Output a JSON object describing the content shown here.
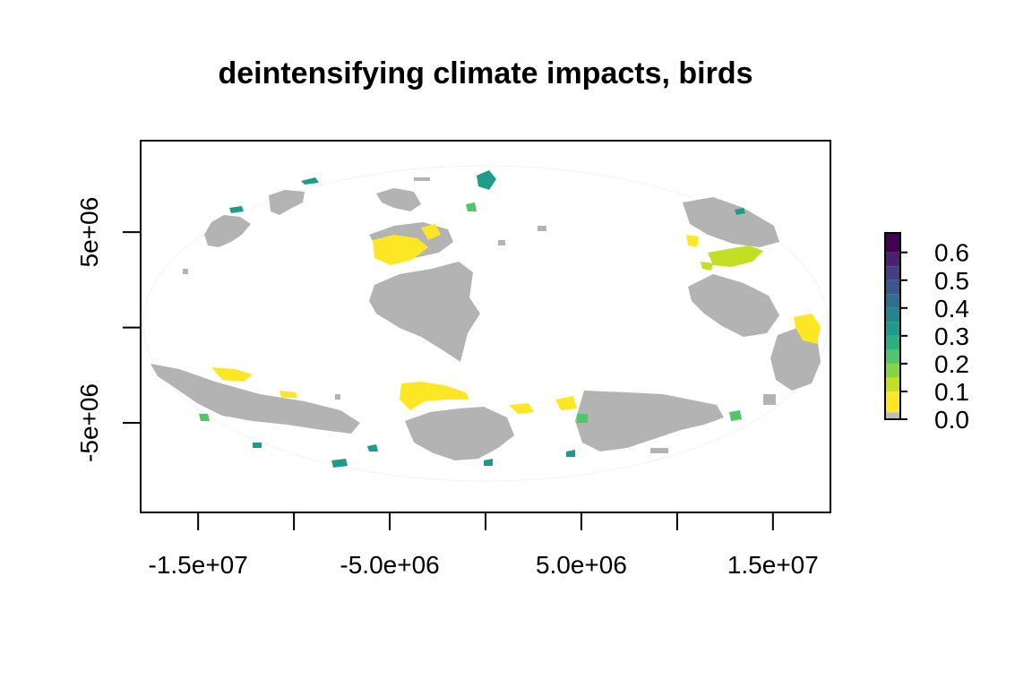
{
  "title": "deintensifying climate impacts, birds",
  "chart_data": {
    "type": "heatmap",
    "title": "deintensifying climate impacts, birds",
    "xlim": [
      -18000000,
      18000000
    ],
    "ylim": [
      -9700000,
      9800000
    ],
    "x_ticks": [
      {
        "value": -15000000,
        "label": "-1.5e+07"
      },
      {
        "value": -10000000,
        "label": ""
      },
      {
        "value": -5000000,
        "label": "-5.0e+06"
      },
      {
        "value": 0,
        "label": ""
      },
      {
        "value": 5000000,
        "label": "5.0e+06"
      },
      {
        "value": 10000000,
        "label": ""
      },
      {
        "value": 15000000,
        "label": "1.5e+07"
      }
    ],
    "y_ticks": [
      {
        "value": 5000000,
        "label": "5e+06"
      },
      {
        "value": 0,
        "label": ""
      },
      {
        "value": -5000000,
        "label": "-5e+06"
      }
    ],
    "legend": {
      "placement": "right",
      "range": [
        0,
        0.67
      ],
      "ticks": [
        "0.0",
        "0.1",
        "0.2",
        "0.3",
        "0.4",
        "0.5",
        "0.6"
      ],
      "bins": [
        {
          "from": 0.0,
          "to": 0.025,
          "color": "#bebebe"
        },
        {
          "from": 0.025,
          "to": 0.1,
          "color": "#fde725"
        },
        {
          "from": 0.1,
          "to": 0.15,
          "color": "#c2df23"
        },
        {
          "from": 0.15,
          "to": 0.2,
          "color": "#86d549"
        },
        {
          "from": 0.2,
          "to": 0.25,
          "color": "#52c569"
        },
        {
          "from": 0.25,
          "to": 0.3,
          "color": "#2ab07f"
        },
        {
          "from": 0.3,
          "to": 0.35,
          "color": "#1e9b8a"
        },
        {
          "from": 0.35,
          "to": 0.4,
          "color": "#25858e"
        },
        {
          "from": 0.4,
          "to": 0.45,
          "color": "#2d708e"
        },
        {
          "from": 0.45,
          "to": 0.5,
          "color": "#38588c"
        },
        {
          "from": 0.5,
          "to": 0.55,
          "color": "#433e85"
        },
        {
          "from": 0.55,
          "to": 0.6,
          "color": "#482173"
        },
        {
          "from": 0.6,
          "to": 0.67,
          "color": "#440154"
        }
      ]
    },
    "land_color": "#b3b3b3"
  }
}
